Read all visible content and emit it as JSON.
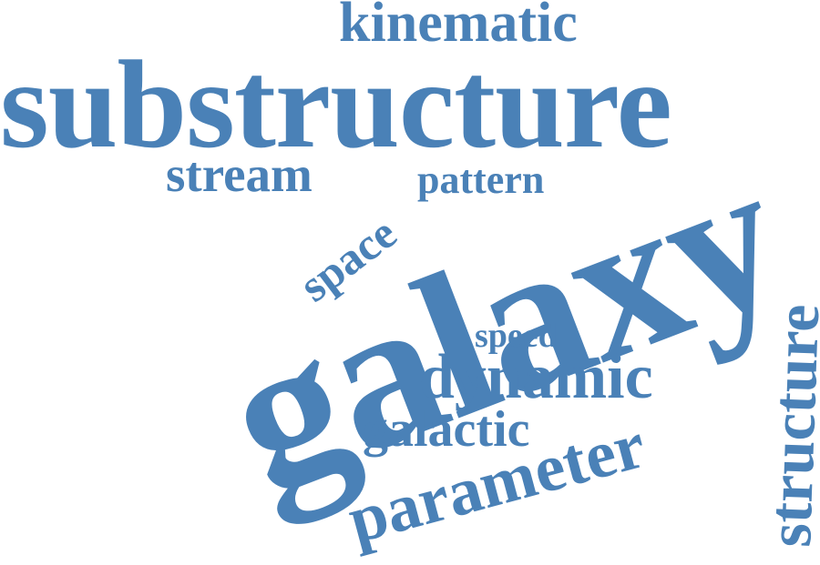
{
  "colors": {
    "word": "#4a81b7",
    "background": "#ffffff"
  },
  "words": {
    "kinematic": "kinematic",
    "substructure": "substructure",
    "stream": "stream",
    "space": "space",
    "pattern": "pattern",
    "galaxy": "galaxy",
    "speed": "speed",
    "dynamic": "dynamic",
    "galactic": "galactic",
    "parameter": "parameter",
    "structure": "structure"
  }
}
